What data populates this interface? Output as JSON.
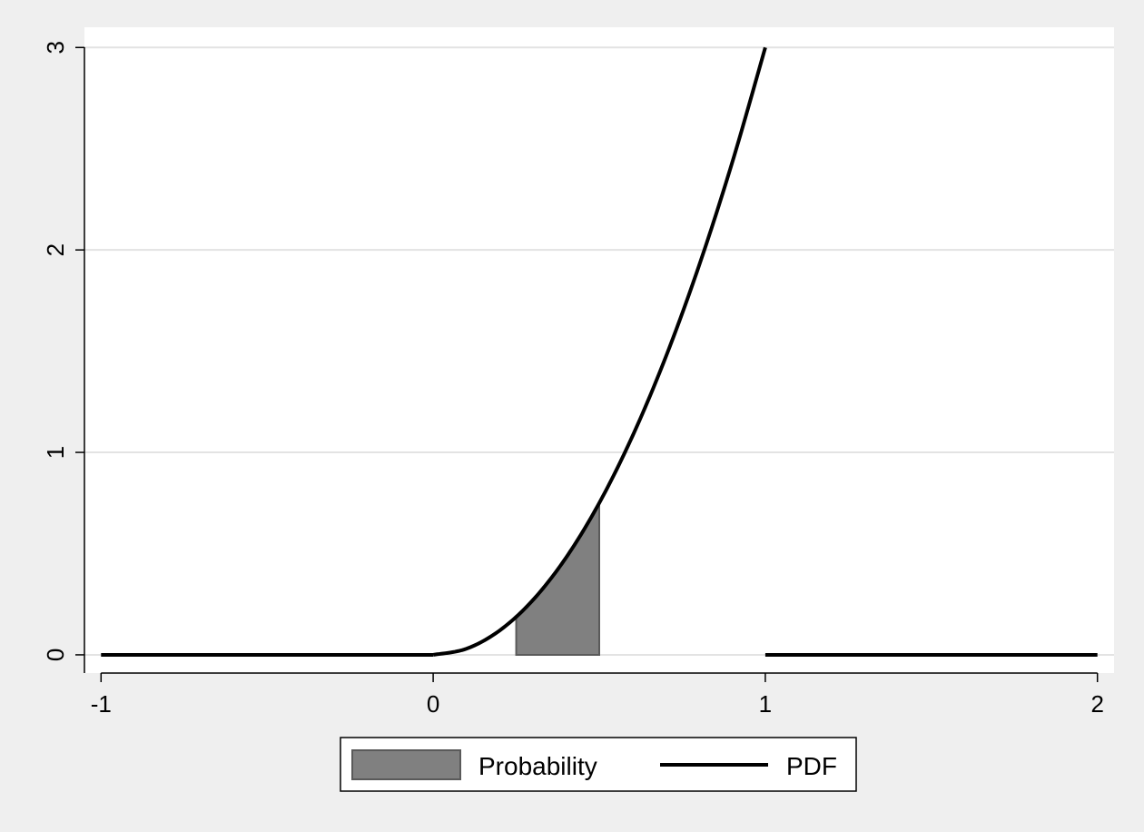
{
  "chart_data": {
    "type": "area",
    "title": "",
    "xlabel": "",
    "ylabel": "",
    "xlim": [
      -1.05,
      2.05
    ],
    "ylim": [
      -0.09,
      3.1
    ],
    "xticks": [
      -1,
      0,
      1,
      2
    ],
    "yticks": [
      0,
      1,
      2,
      3
    ],
    "xtick_labels": [
      "-1",
      "0",
      "1",
      "2"
    ],
    "ytick_labels": [
      "0",
      "1",
      "2",
      "3"
    ],
    "grid": "horizontal",
    "legend_position": "bottom",
    "series": [
      {
        "name": "Probability",
        "kind": "area",
        "x": [
          0.25,
          0.3,
          0.35,
          0.4,
          0.45,
          0.5
        ],
        "y": [
          0.1875,
          0.27,
          0.3675,
          0.48,
          0.6075,
          0.75
        ],
        "color": "#808080"
      },
      {
        "name": "PDF",
        "kind": "line",
        "segments": [
          {
            "x": [
              -1,
              0
            ],
            "y": [
              0,
              0
            ]
          },
          {
            "x": [
              0,
              0.1,
              0.2,
              0.3,
              0.4,
              0.5,
              0.6,
              0.7,
              0.8,
              0.9,
              1.0
            ],
            "y": [
              0,
              0.03,
              0.12,
              0.27,
              0.48,
              0.75,
              1.08,
              1.47,
              1.92,
              2.43,
              3.0
            ]
          },
          {
            "x": [
              1,
              2
            ],
            "y": [
              0,
              0
            ]
          }
        ],
        "color": "#000000"
      }
    ]
  }
}
